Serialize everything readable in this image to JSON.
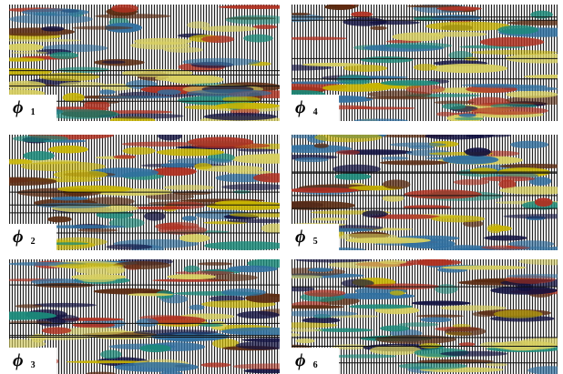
{
  "panels": [
    {
      "symbol": "ϕ",
      "index": "1"
    },
    {
      "symbol": "ϕ",
      "index": "4"
    },
    {
      "symbol": "ϕ",
      "index": "2"
    },
    {
      "symbol": "ϕ",
      "index": "5"
    },
    {
      "symbol": "ϕ",
      "index": "3"
    },
    {
      "symbol": "ϕ",
      "index": "6"
    }
  ]
}
